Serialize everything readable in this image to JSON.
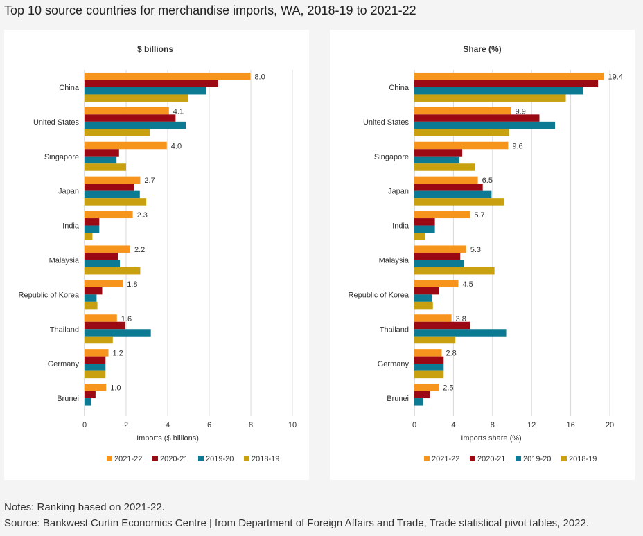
{
  "title": "Top 10 source countries for merchandise imports, WA, 2018-19 to 2021-22",
  "notes": "Notes: Ranking based on 2021-22.",
  "source": "Source: Bankwest Curtin Economics Centre | from Department of Foreign Affairs and Trade, Trade statistical pivot tables, 2022.",
  "colors": {
    "2021-22": "#f7941d",
    "2020-21": "#9b0a14",
    "2019-20": "#0b7a92",
    "2018-19": "#c9a010",
    "grid": "#d9d9d9",
    "axis": "#bfbfbf"
  },
  "chart_data": [
    {
      "type": "bar",
      "orientation": "horizontal",
      "title": "$ billions",
      "xlabel": "Imports ($ billions)",
      "ylabel": "",
      "xlim": [
        0,
        10
      ],
      "xticks": [
        0,
        2,
        4,
        6,
        8,
        10
      ],
      "grid": true,
      "legend_position": "bottom",
      "categories": [
        "China",
        "United States",
        "Singapore",
        "Japan",
        "India",
        "Malaysia",
        "Republic of Korea",
        "Thailand",
        "Germany",
        "Brunei"
      ],
      "series": [
        {
          "name": "2021-22",
          "values": [
            7.98,
            4.06,
            3.96,
            2.68,
            2.32,
            2.2,
            1.84,
            1.56,
            1.15,
            1.04
          ]
        },
        {
          "name": "2020-21",
          "values": [
            6.43,
            4.38,
            1.66,
            2.39,
            0.71,
            1.61,
            0.85,
            1.96,
            1.01,
            0.53
          ]
        },
        {
          "name": "2019-20",
          "values": [
            5.85,
            4.87,
            1.54,
            2.66,
            0.71,
            1.7,
            0.58,
            3.19,
            1.01,
            0.32
          ]
        },
        {
          "name": "2018-19",
          "values": [
            5.0,
            3.14,
            2.0,
            2.97,
            0.38,
            2.68,
            0.62,
            1.36,
            1.01,
            0.0
          ]
        }
      ],
      "data_labels": [
        "8.0",
        "4.1",
        "4.0",
        "2.7",
        "2.3",
        "2.2",
        "1.8",
        "1.6",
        "1.2",
        "1.0"
      ]
    },
    {
      "type": "bar",
      "orientation": "horizontal",
      "title": "Share (%)",
      "xlabel": "Imports share (%)",
      "ylabel": "",
      "xlim": [
        0,
        20
      ],
      "xticks": [
        0,
        4,
        8,
        12,
        16,
        20
      ],
      "grid": true,
      "legend_position": "bottom",
      "categories": [
        "China",
        "United States",
        "Singapore",
        "Japan",
        "India",
        "Malaysia",
        "Republic of Korea",
        "Thailand",
        "Germany",
        "Brunei"
      ],
      "series": [
        {
          "name": "2021-22",
          "values": [
            19.4,
            9.9,
            9.6,
            6.5,
            5.7,
            5.3,
            4.5,
            3.8,
            2.8,
            2.5
          ]
        },
        {
          "name": "2020-21",
          "values": [
            18.8,
            12.8,
            4.9,
            7.0,
            2.1,
            4.7,
            2.5,
            5.7,
            3.0,
            1.6
          ]
        },
        {
          "name": "2019-20",
          "values": [
            17.3,
            14.4,
            4.6,
            7.9,
            2.1,
            5.1,
            1.8,
            9.4,
            3.0,
            0.9
          ]
        },
        {
          "name": "2018-19",
          "values": [
            15.5,
            9.7,
            6.2,
            9.2,
            1.1,
            8.2,
            1.9,
            4.2,
            3.0,
            0.0
          ]
        }
      ],
      "data_labels": [
        "19.4",
        "9.9",
        "9.6",
        "6.5",
        "5.7",
        "5.3",
        "4.5",
        "3.8",
        "2.8",
        "2.5"
      ]
    }
  ]
}
